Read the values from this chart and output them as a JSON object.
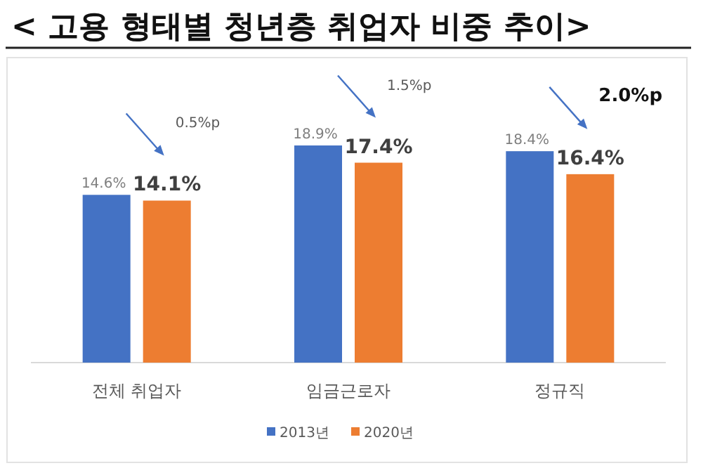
{
  "chart_data": {
    "type": "bar",
    "title": "< 고용 형태별 청년층 취업자 비중 추이>",
    "categories": [
      "전체 취업자",
      "임금근로자",
      "정규직"
    ],
    "series": [
      {
        "name": "2013년",
        "color": "#4472c4",
        "values": [
          14.6,
          18.9,
          18.4
        ],
        "value_labels": [
          "14.6%",
          "18.9%",
          "18.4%"
        ]
      },
      {
        "name": "2020년",
        "color": "#ed7d31",
        "values": [
          14.1,
          17.4,
          16.4
        ],
        "value_labels": [
          "14.1%",
          "17.4%",
          "16.4%"
        ]
      }
    ],
    "legend": "bottom",
    "annotations": [
      "0.5%p",
      "1.5%p",
      "2.0%p"
    ]
  }
}
